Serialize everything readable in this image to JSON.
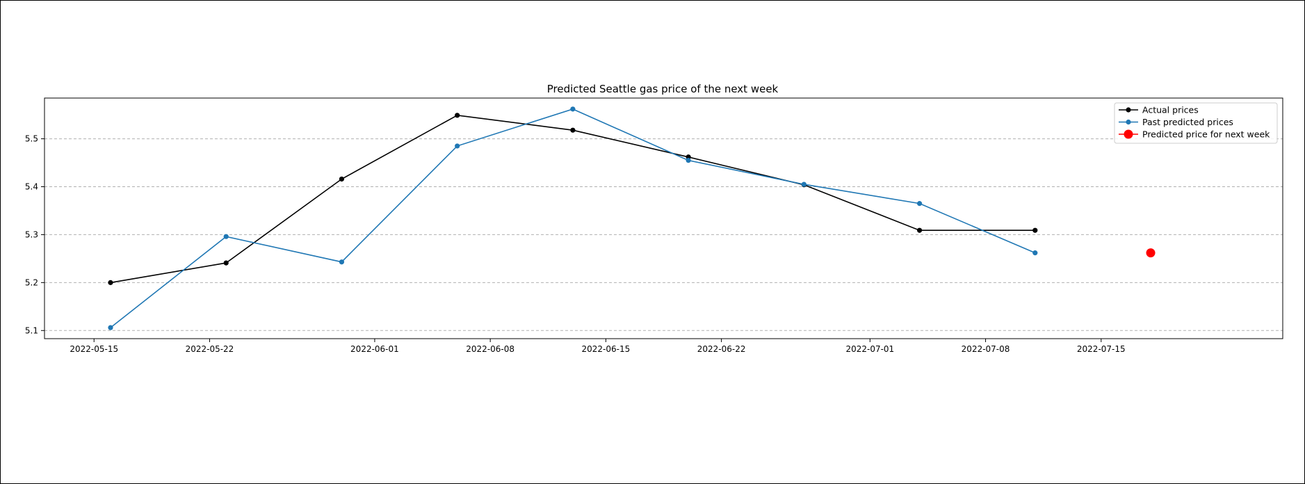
{
  "chart_data": {
    "type": "line",
    "title": "Predicted Seattle gas price of the next week",
    "xlabel": "",
    "ylabel": "",
    "x_ticks": [
      "2022-05-15",
      "2022-05-22",
      "2022-06-01",
      "2022-06-08",
      "2022-06-15",
      "2022-06-22",
      "2022-07-01",
      "2022-07-08",
      "2022-07-15"
    ],
    "y_ticks": [
      5.1,
      5.2,
      5.3,
      5.4,
      5.5
    ],
    "xlim": [
      "2022-05-12",
      "2022-07-26"
    ],
    "ylim": [
      5.083,
      5.585
    ],
    "grid": "horizontal dashed",
    "legend_position": "top-right",
    "series": [
      {
        "name": "Actual prices",
        "color": "#000000",
        "marker": "circle",
        "x": [
          "2022-05-16",
          "2022-05-23",
          "2022-05-30",
          "2022-06-06",
          "2022-06-13",
          "2022-06-20",
          "2022-06-27",
          "2022-07-04",
          "2022-07-11"
        ],
        "y": [
          5.2,
          5.241,
          5.416,
          5.549,
          5.518,
          5.462,
          5.404,
          5.309,
          5.309
        ]
      },
      {
        "name": "Past predicted prices",
        "color": "#1f77b4",
        "marker": "circle",
        "x": [
          "2022-05-16",
          "2022-05-23",
          "2022-05-30",
          "2022-06-06",
          "2022-06-13",
          "2022-06-20",
          "2022-06-27",
          "2022-07-04",
          "2022-07-11"
        ],
        "y": [
          5.106,
          5.296,
          5.243,
          5.485,
          5.562,
          5.455,
          5.405,
          5.365,
          5.262
        ]
      },
      {
        "name": "Predicted price for next week",
        "color": "#ff0000",
        "marker": "large-circle",
        "x": [
          "2022-07-18"
        ],
        "y": [
          5.262
        ]
      }
    ]
  }
}
